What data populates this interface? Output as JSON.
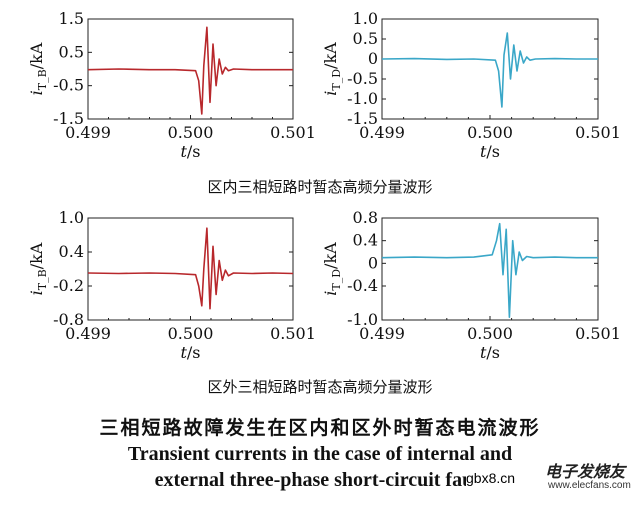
{
  "colors": {
    "red_trace": "#b8282c",
    "cyan_trace": "#3aa7c8",
    "axis": "#222222"
  },
  "captions": {
    "internal": "区内三相短路时暂态高频分量波形",
    "external": "区外三相短路时暂态高频分量波形",
    "main_zh": "三相短路故障发生在区内和区外时暂态电流波形",
    "main_en_line1": "Transient currents in the case of internal and",
    "main_en_line2": "external three-phase short-circuit fault"
  },
  "watermark": {
    "text1": "gbx8.cn",
    "text2": "电子发烧友",
    "text3": "www.elecfans.com"
  },
  "chart_data": [
    {
      "type": "line",
      "panel": "top-left",
      "ylabel_main": "i",
      "ylabel_sub": "T_B",
      "ylabel_unit": "/kA",
      "xlabel_main": "t",
      "xlabel_unit": "/s",
      "xlim": [
        0.499,
        0.501
      ],
      "ylim": [
        -1.5,
        1.5
      ],
      "xticks": [
        "0.499",
        "0.500",
        "0.501"
      ],
      "yticks": [
        "1.5",
        "0.5",
        "-0.5",
        "-1.5"
      ],
      "ytick_values": [
        1.5,
        0.5,
        -0.5,
        -1.5
      ],
      "color": "red",
      "series": [
        {
          "x": [
            0.499,
            0.4993,
            0.4996,
            0.49985,
            0.50005,
            0.50008,
            0.50011,
            0.50013,
            0.50016,
            0.50019,
            0.50022,
            0.50025,
            0.50028,
            0.50031,
            0.50034,
            0.50037,
            0.50042,
            0.5006,
            0.5008,
            0.501
          ],
          "y": [
            -0.02,
            0.0,
            -0.02,
            -0.02,
            -0.05,
            -0.35,
            -1.35,
            0.1,
            1.25,
            -1.0,
            0.75,
            -0.5,
            0.3,
            -0.15,
            0.05,
            -0.05,
            0.0,
            -0.02,
            -0.02,
            -0.02
          ]
        }
      ]
    },
    {
      "type": "line",
      "panel": "top-right",
      "ylabel_main": "i",
      "ylabel_sub": "T_D",
      "ylabel_unit": "/kA",
      "xlabel_main": "t",
      "xlabel_unit": "/s",
      "xlim": [
        0.499,
        0.501
      ],
      "ylim": [
        -1.5,
        1.0
      ],
      "xticks": [
        "0.499",
        "0.500",
        "0.501"
      ],
      "yticks": [
        "1.0",
        "0.5",
        "0",
        "-0.5",
        "-1.0",
        "-1.5"
      ],
      "ytick_values": [
        1.0,
        0.5,
        0,
        -0.5,
        -1.0,
        -1.5
      ],
      "color": "cyan",
      "series": [
        {
          "x": [
            0.499,
            0.4993,
            0.4996,
            0.49985,
            0.50005,
            0.50008,
            0.50011,
            0.50013,
            0.50016,
            0.50019,
            0.50022,
            0.50025,
            0.50028,
            0.50031,
            0.50034,
            0.50037,
            0.50042,
            0.5006,
            0.5008,
            0.501
          ],
          "y": [
            0.0,
            0.01,
            -0.01,
            0.0,
            -0.03,
            -0.3,
            -1.2,
            0.1,
            0.65,
            -0.5,
            0.35,
            -0.3,
            0.2,
            -0.1,
            0.05,
            -0.03,
            0.0,
            0.01,
            0.0,
            0.0
          ]
        }
      ]
    },
    {
      "type": "line",
      "panel": "bottom-left",
      "ylabel_main": "i",
      "ylabel_sub": "T_B",
      "ylabel_unit": "/kA",
      "xlabel_main": "t",
      "xlabel_unit": "/s",
      "xlim": [
        0.499,
        0.501
      ],
      "ylim": [
        -0.8,
        1.0
      ],
      "xticks": [
        "0.499",
        "0.500",
        "0.501"
      ],
      "yticks": [
        "1.0",
        "0.4",
        "-0.2",
        "-0.8"
      ],
      "ytick_values": [
        1.0,
        0.4,
        -0.2,
        -0.8
      ],
      "color": "red",
      "series": [
        {
          "x": [
            0.499,
            0.4993,
            0.4996,
            0.49985,
            0.50005,
            0.50008,
            0.50011,
            0.50013,
            0.50016,
            0.50019,
            0.50022,
            0.50025,
            0.50028,
            0.50031,
            0.50034,
            0.50037,
            0.50042,
            0.5006,
            0.5008,
            0.501
          ],
          "y": [
            0.03,
            0.02,
            0.03,
            0.02,
            0.0,
            -0.2,
            -0.55,
            0.1,
            0.82,
            -0.6,
            0.5,
            -0.35,
            0.25,
            -0.1,
            0.08,
            -0.02,
            0.03,
            0.02,
            0.03,
            0.02
          ]
        }
      ]
    },
    {
      "type": "line",
      "panel": "bottom-right",
      "ylabel_main": "i",
      "ylabel_sub": "T_D",
      "ylabel_unit": "/kA",
      "xlabel_main": "t",
      "xlabel_unit": "/s",
      "xlim": [
        0.499,
        0.501
      ],
      "ylim": [
        -1.0,
        0.8
      ],
      "xticks": [
        "0.499",
        "0.500",
        "0.501"
      ],
      "yticks": [
        "0.8",
        "0.4",
        "0",
        "-0.4",
        "-1.0"
      ],
      "ytick_values": [
        0.8,
        0.4,
        0,
        -0.4,
        -1.0
      ],
      "color": "cyan",
      "series": [
        {
          "x": [
            0.499,
            0.4993,
            0.4996,
            0.49985,
            0.50002,
            0.50006,
            0.50009,
            0.50012,
            0.50015,
            0.50018,
            0.50021,
            0.50024,
            0.50027,
            0.5003,
            0.50034,
            0.5004,
            0.5006,
            0.5008,
            0.501
          ],
          "y": [
            0.1,
            0.11,
            0.1,
            0.11,
            0.15,
            0.4,
            0.7,
            -0.2,
            0.6,
            -0.95,
            0.4,
            -0.2,
            0.2,
            0.05,
            0.12,
            0.1,
            0.11,
            0.1,
            0.1
          ]
        }
      ]
    }
  ]
}
